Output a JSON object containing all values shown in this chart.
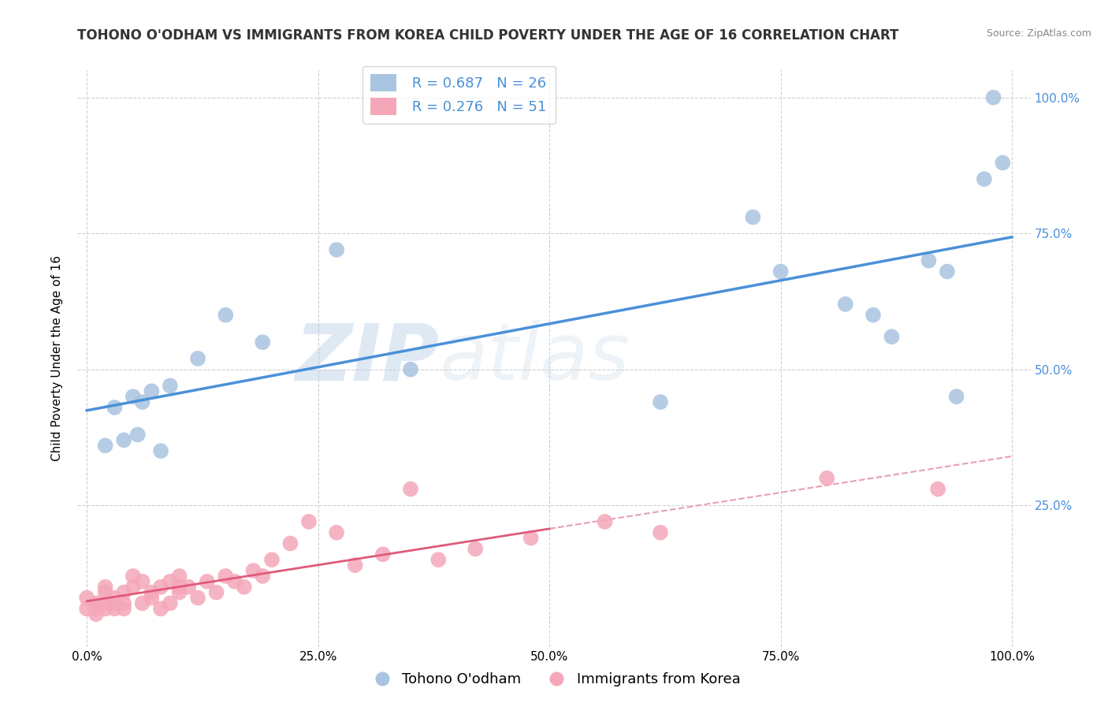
{
  "title": "TOHONO O'ODHAM VS IMMIGRANTS FROM KOREA CHILD POVERTY UNDER THE AGE OF 16 CORRELATION CHART",
  "source": "Source: ZipAtlas.com",
  "ylabel": "Child Poverty Under the Age of 16",
  "legend_label1": "Tohono O'odham",
  "legend_label2": "Immigrants from Korea",
  "r1": 0.687,
  "n1": 26,
  "r2": 0.276,
  "n2": 51,
  "color1": "#a8c4e0",
  "color2": "#f4a7b9",
  "line1_color": "#4a90d9",
  "line2_color": "#e05a7a",
  "dash_color": "#e8a0b0",
  "background": "#ffffff",
  "xlim": [
    -0.01,
    1.02
  ],
  "ylim": [
    -0.01,
    1.05
  ],
  "xticks": [
    0,
    0.25,
    0.5,
    0.75,
    1.0
  ],
  "xticklabels": [
    "0.0%",
    "25.0%",
    "50.0%",
    "75.0%",
    "100.0%"
  ],
  "yticks": [
    0.25,
    0.5,
    0.75,
    1.0
  ],
  "yticklabels_right": [
    "25.0%",
    "50.0%",
    "75.0%",
    "100.0%"
  ],
  "blue_x": [
    0.02,
    0.03,
    0.04,
    0.05,
    0.055,
    0.06,
    0.07,
    0.08,
    0.09,
    0.12,
    0.15,
    0.19,
    0.27,
    0.35,
    0.62,
    0.72,
    0.75,
    0.82,
    0.85,
    0.87,
    0.91,
    0.93,
    0.94,
    0.97,
    0.98,
    0.99
  ],
  "blue_y": [
    0.36,
    0.43,
    0.37,
    0.45,
    0.38,
    0.44,
    0.46,
    0.35,
    0.47,
    0.52,
    0.6,
    0.55,
    0.72,
    0.5,
    0.44,
    0.78,
    0.68,
    0.62,
    0.6,
    0.56,
    0.7,
    0.68,
    0.45,
    0.85,
    1.0,
    0.88
  ],
  "pink_x": [
    0.0,
    0.0,
    0.01,
    0.01,
    0.01,
    0.02,
    0.02,
    0.02,
    0.02,
    0.03,
    0.03,
    0.03,
    0.04,
    0.04,
    0.04,
    0.05,
    0.05,
    0.06,
    0.06,
    0.07,
    0.07,
    0.08,
    0.08,
    0.09,
    0.09,
    0.1,
    0.1,
    0.1,
    0.11,
    0.12,
    0.13,
    0.14,
    0.15,
    0.16,
    0.17,
    0.18,
    0.19,
    0.2,
    0.22,
    0.24,
    0.27,
    0.29,
    0.32,
    0.35,
    0.38,
    0.42,
    0.48,
    0.56,
    0.62,
    0.8,
    0.92
  ],
  "pink_y": [
    0.06,
    0.08,
    0.05,
    0.07,
    0.06,
    0.06,
    0.07,
    0.09,
    0.1,
    0.06,
    0.07,
    0.08,
    0.06,
    0.07,
    0.09,
    0.1,
    0.12,
    0.07,
    0.11,
    0.08,
    0.09,
    0.06,
    0.1,
    0.07,
    0.11,
    0.09,
    0.1,
    0.12,
    0.1,
    0.08,
    0.11,
    0.09,
    0.12,
    0.11,
    0.1,
    0.13,
    0.12,
    0.15,
    0.18,
    0.22,
    0.2,
    0.14,
    0.16,
    0.28,
    0.15,
    0.17,
    0.19,
    0.22,
    0.2,
    0.3,
    0.28
  ],
  "watermark_zip": "ZIP",
  "watermark_atlas": "atlas",
  "title_fontsize": 12,
  "axis_fontsize": 11,
  "tick_fontsize": 11,
  "legend_fontsize": 13
}
